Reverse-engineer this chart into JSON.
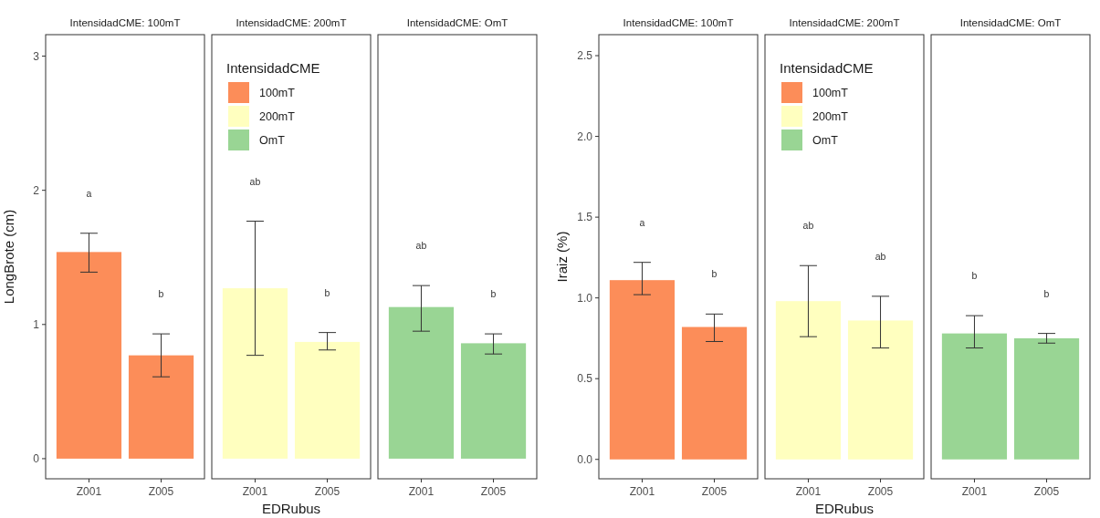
{
  "chart_data": [
    {
      "type": "bar",
      "title": "IntensidadCME: 100mT",
      "ylabel": "LongBrote (cm)",
      "categories": [
        "Z001",
        "Z005"
      ],
      "series": [
        {
          "color": "#fc8d59",
          "values": [
            1.54,
            0.77
          ],
          "errors": [
            [
              1.39,
              1.68
            ],
            [
              0.61,
              0.93
            ]
          ]
        }
      ],
      "ylim": [
        -0.15,
        3.16
      ],
      "yticks": [
        0,
        1,
        2,
        3
      ],
      "annotations": [
        "a",
        "b"
      ]
    },
    {
      "type": "bar",
      "title": "IntensidadCME: 200mT",
      "xlabel": "EDRubus",
      "legend_title": "IntensidadCME",
      "legend": "top left",
      "categories": [
        "Z001",
        "Z005"
      ],
      "series": [
        {
          "name": "100mT",
          "color": "#fc8d59",
          "values": [
            null,
            null
          ]
        },
        {
          "name": "200mT",
          "color": "#ffffbf",
          "values": [
            1.27,
            0.87
          ],
          "errors": [
            [
              0.77,
              1.77
            ],
            [
              0.81,
              0.94
            ]
          ]
        },
        {
          "name": "OmT",
          "color": "#99d594",
          "values": [
            null,
            null
          ]
        }
      ],
      "ylim": [
        -0.15,
        3.16
      ],
      "tick_labels": "x",
      "annotations": [
        "ab",
        "b"
      ]
    },
    {
      "type": "bar",
      "title": "IntensidadCME: OmT",
      "categories": [
        "Z001",
        "Z005"
      ],
      "series": [
        {
          "color": "#99d594",
          "values": [
            1.13,
            0.86
          ],
          "errors": [
            [
              0.95,
              1.29
            ],
            [
              0.78,
              0.93
            ]
          ]
        }
      ],
      "ylim": [
        -0.15,
        3.16
      ],
      "tick_labels": "x",
      "annotations": [
        "ab",
        "b"
      ]
    },
    {
      "type": "bar",
      "title": "IntensidadCME: 100mT",
      "ylabel": "Iraiz (%)",
      "categories": [
        "Z001",
        "Z005"
      ],
      "series": [
        {
          "color": "#fc8d59",
          "values": [
            1.11,
            0.82
          ],
          "errors": [
            [
              1.02,
              1.22
            ],
            [
              0.73,
              0.9
            ]
          ]
        }
      ],
      "ylim": [
        -0.12,
        2.63
      ],
      "yticks": [
        {
          "value": 0,
          "label": "0.0"
        },
        {
          "value": 0.5,
          "label": "0.5"
        },
        {
          "value": 1,
          "label": "1.0"
        },
        {
          "value": 1.5,
          "label": "1.5"
        },
        {
          "value": 2,
          "label": "2.0"
        },
        {
          "value": 2.5,
          "label": "2.5"
        }
      ],
      "annotations": [
        "a",
        "b"
      ]
    },
    {
      "type": "bar",
      "title": "IntensidadCME: 200mT",
      "xlabel": "EDRubus",
      "legend_title": "IntensidadCME",
      "legend": "top left",
      "categories": [
        "Z001",
        "Z005"
      ],
      "series": [
        {
          "name": "100mT",
          "color": "#fc8d59",
          "values": [
            null,
            null
          ]
        },
        {
          "name": "200mT",
          "color": "#ffffbf",
          "values": [
            0.98,
            0.86
          ],
          "errors": [
            [
              0.76,
              1.2
            ],
            [
              0.69,
              1.01
            ]
          ]
        },
        {
          "name": "OmT",
          "color": "#99d594",
          "values": [
            null,
            null
          ]
        }
      ],
      "ylim": [
        -0.12,
        2.63
      ],
      "tick_labels": "x",
      "annotations": [
        "ab",
        "ab"
      ]
    },
    {
      "type": "bar",
      "title": "IntensidadCME: OmT",
      "categories": [
        "Z001",
        "Z005"
      ],
      "series": [
        {
          "color": "#99d594",
          "values": [
            0.78,
            0.75
          ],
          "errors": [
            [
              0.69,
              0.89
            ],
            [
              0.72,
              0.78
            ]
          ]
        }
      ],
      "ylim": [
        -0.12,
        2.63
      ],
      "tick_labels": "x",
      "annotations": [
        "b",
        "b"
      ]
    }
  ]
}
